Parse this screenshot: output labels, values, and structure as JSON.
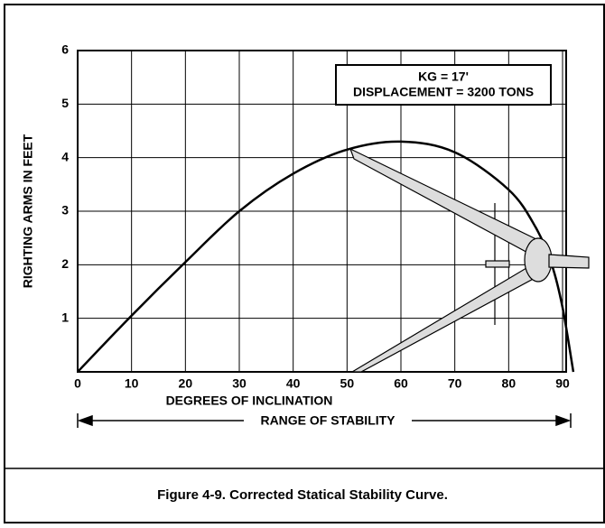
{
  "chart_data": {
    "type": "line",
    "title": "Figure 4-9.  Corrected Statical Stability Curve.",
    "x_label": "DEGREES OF INCLINATION",
    "y_label": "RIGHTING ARMS IN FEET",
    "annotations": [
      "KG = 17'",
      "DISPLACEMENT = 3200 TONS",
      "RANGE OF STABILITY"
    ],
    "x": [
      0,
      10,
      20,
      30,
      40,
      50,
      60,
      70,
      80,
      85,
      88,
      90,
      92
    ],
    "series": [
      {
        "color": "#000000",
        "values": [
          0,
          1.05,
          2.05,
          3.0,
          3.7,
          4.15,
          4.3,
          4.1,
          3.4,
          2.7,
          2.0,
          1.2,
          0
        ]
      }
    ],
    "xlim": [
      0,
      90
    ],
    "xticks": [
      0,
      10,
      20,
      30,
      40,
      50,
      60,
      70,
      80,
      90
    ],
    "ylim": [
      0,
      6
    ],
    "yticks": [
      1,
      2,
      3,
      4,
      5,
      6
    ],
    "grid": true
  }
}
